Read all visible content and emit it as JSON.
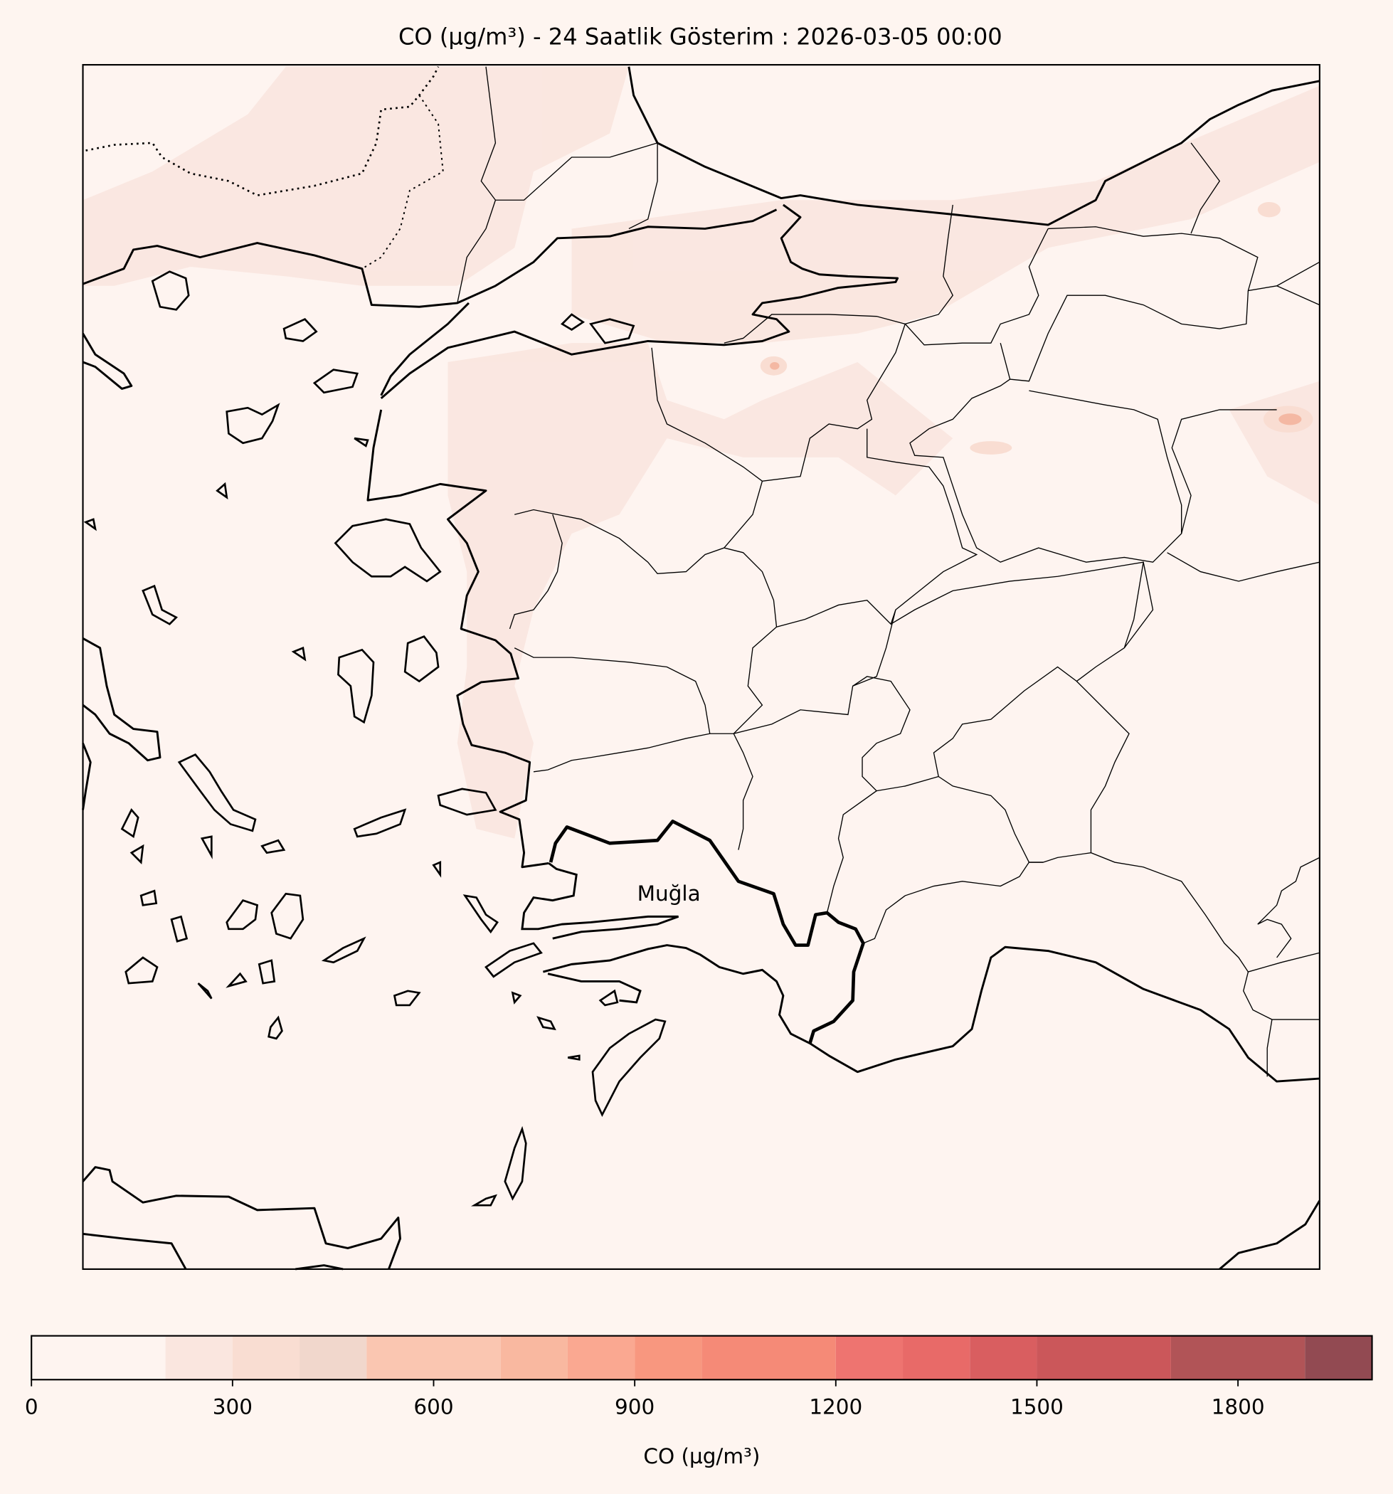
{
  "title": "CO (µg/m³) - 24 Saatlik Gösterim : 2026-03-05 00:00",
  "labels": [
    "Muğla"
  ],
  "colorbar": {
    "label": "CO (µg/m³)",
    "lim": [
      0,
      2000
    ],
    "levels": [
      0,
      200,
      300,
      400,
      500,
      700,
      800,
      900,
      1000,
      1200,
      1300,
      1400,
      1500,
      1700,
      1900,
      2000
    ],
    "colors": [
      "#fef4f0",
      "#fae6df",
      "#f9ddd2",
      "#f1d7cc",
      "#fac6b1",
      "#f9b8a0",
      "#faa891",
      "#f8977f",
      "#f58a77",
      "#ee7470",
      "#e86a68",
      "#d95e60",
      "#cb575a",
      "#b15457",
      "#924a52"
    ],
    "ticks": [
      0,
      300,
      600,
      900,
      1200,
      1500,
      1800
    ]
  }
}
